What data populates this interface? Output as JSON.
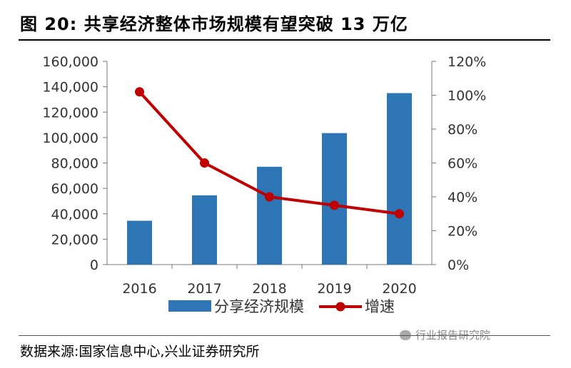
{
  "title": "图  20:  共享经济整体市场规模有望突破 13 万亿",
  "source": "数据来源:国家信息中心,兴业证券研究所",
  "watermark": "行业报告研究院",
  "chart_data": {
    "type": "bar+line",
    "categories": [
      "2016",
      "2017",
      "2018",
      "2019",
      "2020"
    ],
    "series": [
      {
        "name": "分享经济规模",
        "type": "bar",
        "axis": "left",
        "color": "#2e75b6",
        "values": [
          34500,
          54500,
          77000,
          103500,
          135000
        ]
      },
      {
        "name": "增速",
        "type": "line",
        "axis": "right",
        "color": "#c00000",
        "values": [
          102,
          60,
          40,
          35,
          30
        ]
      }
    ],
    "y_left": {
      "min": 0,
      "max": 160000,
      "step": 20000,
      "tick_labels": [
        "0",
        "20,000",
        "40,000",
        "60,000",
        "80,000",
        "100,000",
        "120,000",
        "140,000",
        "160,000"
      ]
    },
    "y_right": {
      "min": 0,
      "max": 120,
      "step": 20,
      "tick_labels": [
        "0%",
        "20%",
        "40%",
        "60%",
        "80%",
        "100%",
        "120%"
      ]
    },
    "grid": false,
    "legend_position": "bottom"
  }
}
